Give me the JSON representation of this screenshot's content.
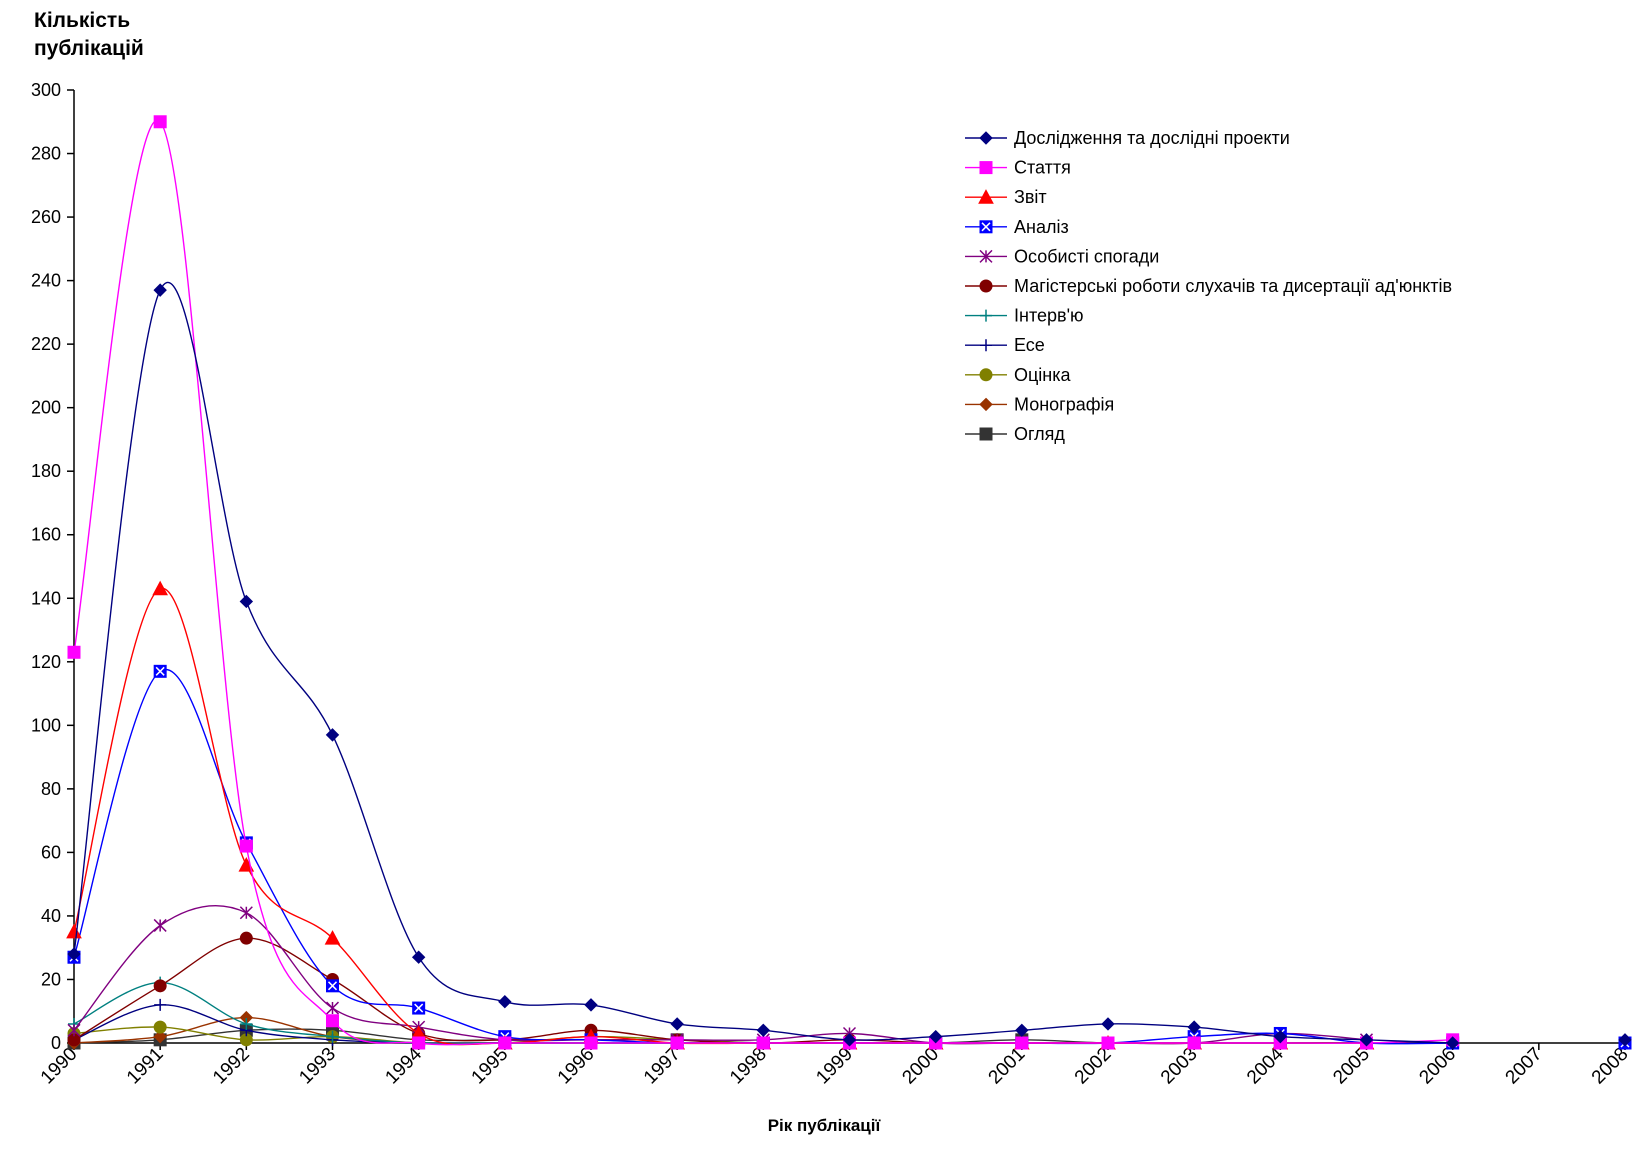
{
  "chart_data": {
    "type": "line",
    "ylabel_lines": [
      "Кількість",
      "публікацій"
    ],
    "xlabel": "Рік публікації",
    "ylim": [
      0,
      300
    ],
    "yticks": [
      0,
      20,
      40,
      60,
      80,
      100,
      120,
      140,
      160,
      180,
      200,
      220,
      240,
      260,
      280,
      300
    ],
    "categories": [
      "1990",
      "1991",
      "1992",
      "1993",
      "1994",
      "1995",
      "1996",
      "1997",
      "1998",
      "1999",
      "2000",
      "2001",
      "2002",
      "2003",
      "2004",
      "2005",
      "2006",
      "2007",
      "2008"
    ],
    "legend_position": "top-right",
    "grid": false,
    "smooth": true,
    "series": [
      {
        "name": "Дослідження та дослідні проекти",
        "color": "#000080",
        "marker": "diamond",
        "values": [
          28,
          237,
          139,
          97,
          27,
          13,
          12,
          6,
          4,
          1,
          2,
          4,
          6,
          5,
          2,
          1,
          0,
          null,
          1
        ]
      },
      {
        "name": "Стаття",
        "color": "#ff00ff",
        "marker": "square",
        "values": [
          123,
          290,
          62,
          7,
          0,
          0,
          0,
          0,
          0,
          0,
          0,
          0,
          0,
          0,
          0,
          0,
          1,
          null,
          null
        ]
      },
      {
        "name": "Звіт",
        "color": "#ff0000",
        "marker": "triangle",
        "values": [
          35,
          143,
          56,
          33,
          3,
          0,
          2,
          0,
          0,
          0,
          0,
          0,
          0,
          0,
          0,
          0,
          null,
          null,
          null
        ]
      },
      {
        "name": "Аналіз",
        "color": "#0000ff",
        "marker": "square-x",
        "values": [
          27,
          117,
          63,
          18,
          11,
          2,
          1,
          0,
          0,
          0,
          0,
          0,
          0,
          2,
          3,
          0,
          0,
          null,
          0
        ]
      },
      {
        "name": "Особисті спогади",
        "color": "#800080",
        "marker": "star",
        "values": [
          4,
          37,
          41,
          11,
          5,
          1,
          1,
          1,
          1,
          3,
          0,
          0,
          0,
          0,
          3,
          1,
          null,
          null,
          null
        ]
      },
      {
        "name": "Магістерські роботи слухачів та дисертації ад'юнктів",
        "color": "#800000",
        "marker": "circle",
        "values": [
          1,
          18,
          33,
          20,
          3,
          1,
          4,
          1,
          0,
          1,
          0,
          0,
          0,
          null,
          null,
          null,
          null,
          null,
          null
        ]
      },
      {
        "name": "Інтерв'ю",
        "color": "#008080",
        "marker": "plus",
        "values": [
          6,
          19,
          6,
          2,
          0,
          0,
          0,
          0,
          0,
          0,
          0,
          0,
          0,
          0,
          0,
          0,
          null,
          null,
          null
        ]
      },
      {
        "name": "Есе",
        "color": "#000080",
        "marker": "plus",
        "values": [
          1,
          12,
          4,
          1,
          0,
          0,
          0,
          0,
          0,
          0,
          0,
          0,
          0,
          0,
          0,
          0,
          null,
          null,
          null
        ]
      },
      {
        "name": "Оцінка",
        "color": "#808000",
        "marker": "circle",
        "values": [
          3,
          5,
          1,
          2,
          0,
          0,
          2,
          1,
          0,
          0,
          0,
          0,
          0,
          0,
          0,
          0,
          null,
          null,
          null
        ]
      },
      {
        "name": "Монографія",
        "color": "#993300",
        "marker": "diamond",
        "values": [
          0,
          2,
          8,
          2,
          0,
          0,
          0,
          0,
          0,
          0,
          0,
          0,
          0,
          0,
          0,
          0,
          null,
          null,
          null
        ]
      },
      {
        "name": "Огляд",
        "color": "#333333",
        "marker": "square",
        "values": [
          0,
          1,
          4,
          4,
          1,
          1,
          1,
          1,
          0,
          0,
          0,
          1,
          0,
          0,
          0,
          0,
          null,
          null,
          null
        ]
      }
    ]
  }
}
